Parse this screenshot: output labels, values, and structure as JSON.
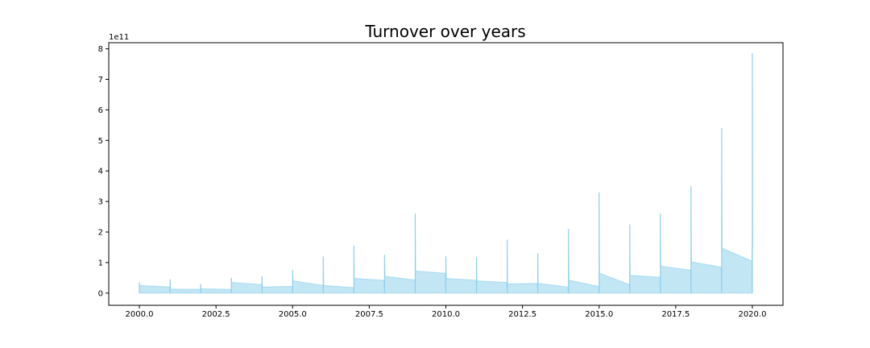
{
  "chart_data": {
    "type": "area",
    "title": "Turnover over years",
    "xlabel": "",
    "ylabel": "",
    "y_offset_label": "1e11",
    "xlim": [
      1999,
      2021
    ],
    "ylim": [
      -0.4,
      8.2
    ],
    "x_ticks": [
      2000.0,
      2002.5,
      2005.0,
      2007.5,
      2010.0,
      2012.5,
      2015.0,
      2017.5,
      2020.0
    ],
    "x_tick_labels": [
      "2000.0",
      "2002.5",
      "2005.0",
      "2007.5",
      "2010.0",
      "2012.5",
      "2015.0",
      "2017.5",
      "2020.0"
    ],
    "y_ticks": [
      0,
      1,
      2,
      3,
      4,
      5,
      6,
      7,
      8
    ],
    "y_tick_labels": [
      "0",
      "1",
      "2",
      "3",
      "4",
      "5",
      "6",
      "7",
      "8"
    ],
    "grid": false,
    "fill_color": "#87ceeb",
    "series": [
      {
        "values": [
          {
            "year": 2000,
            "spike": 0.35,
            "start": 0.25,
            "end": 0.2
          },
          {
            "year": 2001,
            "spike": 0.45,
            "start": 0.13,
            "end": 0.12
          },
          {
            "year": 2002,
            "spike": 0.3,
            "start": 0.14,
            "end": 0.12
          },
          {
            "year": 2003,
            "spike": 0.5,
            "start": 0.35,
            "end": 0.28
          },
          {
            "year": 2004,
            "spike": 0.55,
            "start": 0.2,
            "end": 0.22
          },
          {
            "year": 2005,
            "spike": 0.75,
            "start": 0.4,
            "end": 0.25
          },
          {
            "year": 2006,
            "spike": 1.2,
            "start": 0.25,
            "end": 0.18
          },
          {
            "year": 2007,
            "spike": 1.55,
            "start": 0.48,
            "end": 0.42
          },
          {
            "year": 2008,
            "spike": 1.25,
            "start": 0.55,
            "end": 0.43
          },
          {
            "year": 2009,
            "spike": 2.6,
            "start": 0.72,
            "end": 0.65
          },
          {
            "year": 2010,
            "spike": 1.2,
            "start": 0.48,
            "end": 0.42
          },
          {
            "year": 2011,
            "spike": 1.18,
            "start": 0.4,
            "end": 0.35
          },
          {
            "year": 2012,
            "spike": 1.75,
            "start": 0.3,
            "end": 0.32
          },
          {
            "year": 2013,
            "spike": 1.3,
            "start": 0.32,
            "end": 0.2
          },
          {
            "year": 2014,
            "spike": 2.1,
            "start": 0.42,
            "end": 0.22
          },
          {
            "year": 2015,
            "spike": 3.3,
            "start": 0.65,
            "end": 0.28
          },
          {
            "year": 2016,
            "spike": 2.25,
            "start": 0.58,
            "end": 0.52
          },
          {
            "year": 2017,
            "spike": 2.6,
            "start": 0.88,
            "end": 0.75
          },
          {
            "year": 2018,
            "spike": 3.5,
            "start": 1.02,
            "end": 0.85
          },
          {
            "year": 2019,
            "spike": 5.4,
            "start": 1.47,
            "end": 1.05
          },
          {
            "year": 2020,
            "spike": 7.85,
            "start": 1.5,
            "end": 1.5
          }
        ]
      }
    ]
  }
}
